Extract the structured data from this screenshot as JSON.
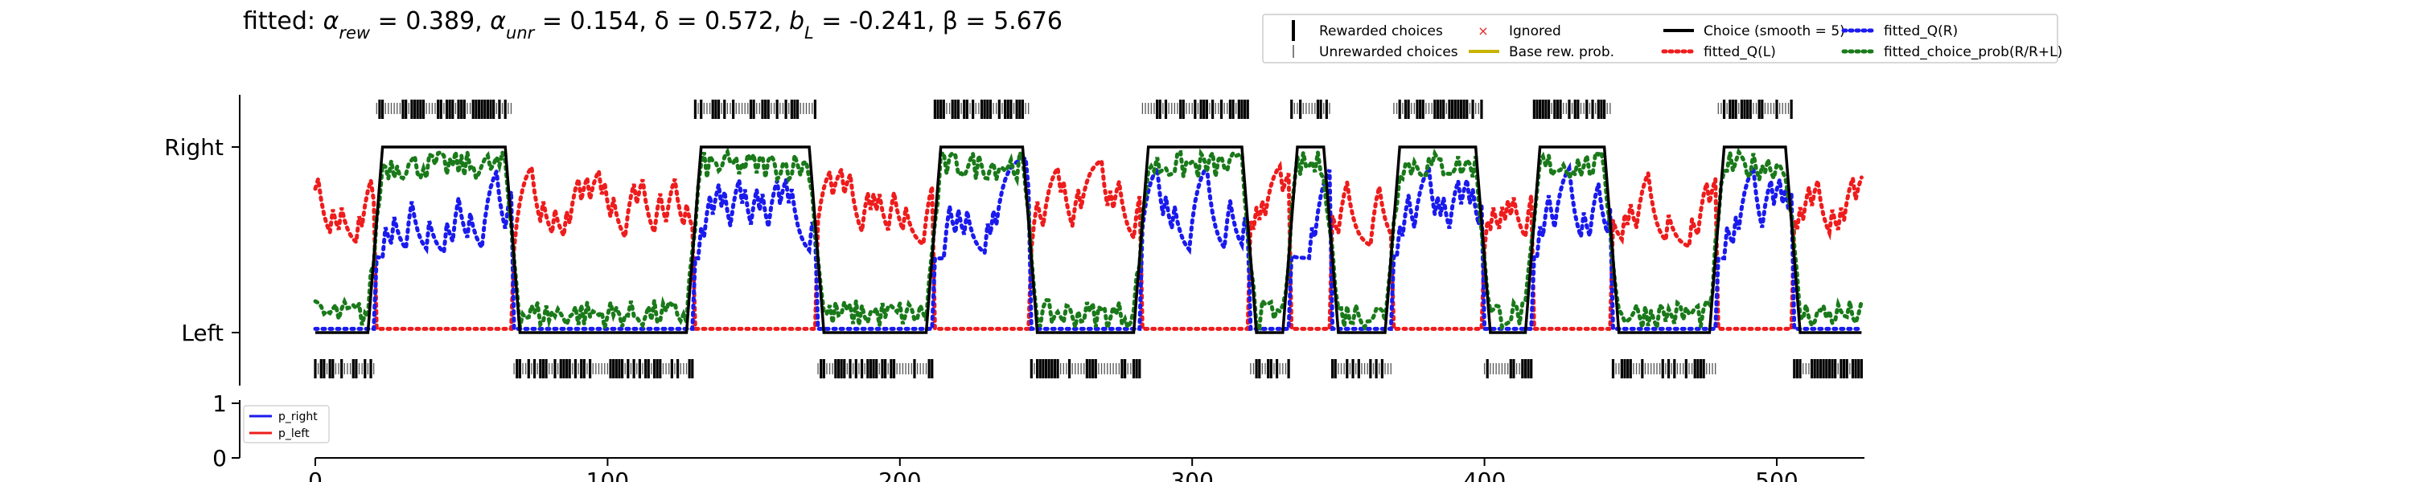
{
  "chart_data": [
    {
      "type": "line",
      "title": "fitted: α_rew = 0.389, α_unr = 0.154, δ = 0.572, b_L = -0.241, β = 5.676",
      "title_parts": [
        {
          "text": "fitted: ",
          "sub": ""
        },
        {
          "text": "α",
          "sub": "rew"
        },
        {
          "text": " = 0.389, ",
          "sub": ""
        },
        {
          "text": "α",
          "sub": "unr"
        },
        {
          "text": " = 0.154, δ = 0.572, ",
          "sub": ""
        },
        {
          "text": "b",
          "sub": "L"
        },
        {
          "text": " = -0.241, β = 5.676",
          "sub": ""
        }
      ],
      "xlim": [
        0,
        530
      ],
      "ylim": [
        0,
        1
      ],
      "y_tick_labels": {
        "left": "Left",
        "right": "Right"
      },
      "legend": {
        "placement": "top-right",
        "entries": [
          {
            "label": "Rewarded choices",
            "color": "#000000",
            "style": "tall-tick"
          },
          {
            "label": "Unrewarded choices",
            "color": "#555555",
            "style": "short-tick"
          },
          {
            "label": "Ignored",
            "color": "#e8262b",
            "style": "x"
          },
          {
            "label": "Base rew. prob.",
            "color": "#c9b400",
            "style": "solid"
          },
          {
            "label": "Choice (smooth = 5)",
            "color": "#000000",
            "style": "solid"
          },
          {
            "label": "fitted_Q(L)",
            "color": "#ee1c1c",
            "style": "dotted"
          },
          {
            "label": "fitted_Q(R)",
            "color": "#1a1aee",
            "style": "dotted"
          },
          {
            "label": "fitted_choice_prob(R/R+L)",
            "color": "#1a7a1a",
            "style": "dotted"
          }
        ]
      },
      "choice_blocks": [
        {
          "side": "L",
          "start": 0,
          "end": 21
        },
        {
          "side": "R",
          "start": 21,
          "end": 68
        },
        {
          "side": "L",
          "start": 68,
          "end": 130
        },
        {
          "side": "R",
          "start": 130,
          "end": 172
        },
        {
          "side": "L",
          "start": 172,
          "end": 212
        },
        {
          "side": "R",
          "start": 212,
          "end": 245
        },
        {
          "side": "L",
          "start": 245,
          "end": 283
        },
        {
          "side": "R",
          "start": 283,
          "end": 320
        },
        {
          "side": "L",
          "start": 320,
          "end": 334
        },
        {
          "side": "R",
          "start": 334,
          "end": 348
        },
        {
          "side": "L",
          "start": 348,
          "end": 369
        },
        {
          "side": "R",
          "start": 369,
          "end": 400
        },
        {
          "side": "L",
          "start": 400,
          "end": 417
        },
        {
          "side": "R",
          "start": 417,
          "end": 444
        },
        {
          "side": "L",
          "start": 444,
          "end": 480
        },
        {
          "side": "R",
          "start": 480,
          "end": 506
        },
        {
          "side": "L",
          "start": 506,
          "end": 530
        }
      ],
      "series": [
        {
          "name": "Choice (smooth = 5)",
          "color": "#000000",
          "style": "solid"
        },
        {
          "name": "fitted_Q(L)",
          "color": "#ee1c1c",
          "style": "dotted"
        },
        {
          "name": "fitted_Q(R)",
          "color": "#1a1aee",
          "style": "dotted"
        },
        {
          "name": "fitted_choice_prob(R/R+L)",
          "color": "#1a7a1a",
          "style": "dotted"
        }
      ]
    },
    {
      "type": "line",
      "xlim": [
        0,
        530
      ],
      "ylim": [
        0,
        1
      ],
      "y_ticks": [
        "0",
        "1"
      ],
      "x_ticks": [
        "0",
        "100",
        "200",
        "300",
        "400",
        "500"
      ],
      "legend": {
        "placement": "top-left",
        "entries": [
          {
            "label": "p_right",
            "color": "#1a1aee"
          },
          {
            "label": "p_left",
            "color": "#ee1c1c"
          }
        ]
      }
    }
  ]
}
